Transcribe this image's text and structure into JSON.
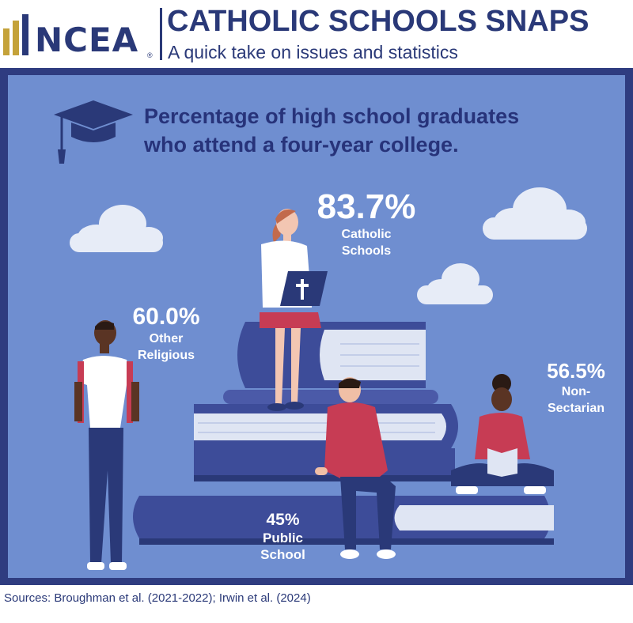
{
  "header": {
    "logo_text": "NCEA",
    "logo_reg": "®",
    "title": "CATHOLIC SCHOOLS SNAPS",
    "subtitle": "A quick take on issues and statistics"
  },
  "infographic": {
    "headline_line1": "Percentage of high school graduates",
    "headline_line2": "who attend a four-year college.",
    "stats": {
      "catholic": {
        "value": "83.7%",
        "label_line1": "Catholic",
        "label_line2": "Schools"
      },
      "other_religious": {
        "value": "60.0%",
        "label_line1": "Other",
        "label_line2": "Religious"
      },
      "non_sectarian": {
        "value": "56.5%",
        "label_line1": "Non-",
        "label_line2": "Sectarian"
      },
      "public": {
        "value": "45%",
        "label_line1": "Public",
        "label_line2": "School"
      }
    }
  },
  "sources": "Sources: Broughman et al. (2021-2022); Irwin et al. (2024)",
  "colors": {
    "navy": "#2a3978",
    "background_blue": "#6f8ed0",
    "book_dark": "#3d4c99",
    "book_pages": "#dfe5f3",
    "shirt_red": "#c73c54",
    "logo_gold": "#c4a23a"
  },
  "icons": {
    "graduation_cap": "graduation-cap-icon",
    "cross": "cross-icon"
  }
}
